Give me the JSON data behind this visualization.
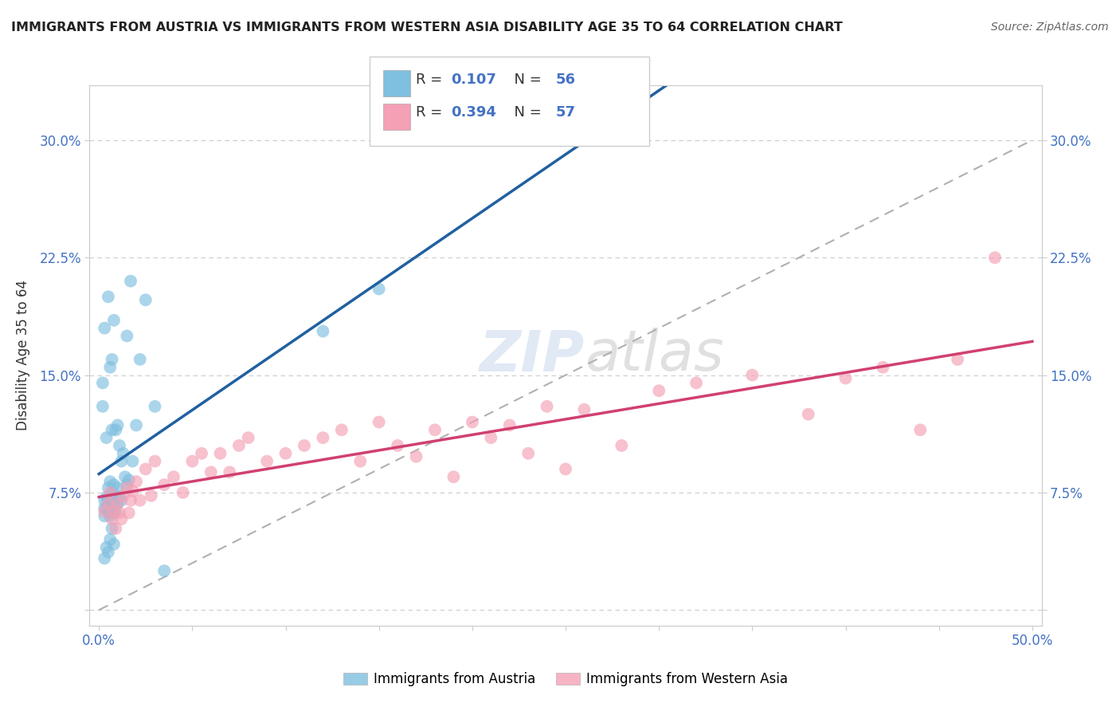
{
  "title": "IMMIGRANTS FROM AUSTRIA VS IMMIGRANTS FROM WESTERN ASIA DISABILITY AGE 35 TO 64 CORRELATION CHART",
  "source": "Source: ZipAtlas.com",
  "ylabel": "Disability Age 35 to 64",
  "xlim": [
    -0.005,
    0.505
  ],
  "ylim": [
    -0.01,
    0.335
  ],
  "ytick_positions": [
    0.0,
    0.075,
    0.15,
    0.225,
    0.3
  ],
  "ytick_labels": [
    "",
    "7.5%",
    "15.0%",
    "22.5%",
    "30.0%"
  ],
  "xtick_vals": [
    0.0,
    0.05,
    0.1,
    0.15,
    0.2,
    0.25,
    0.3,
    0.35,
    0.4,
    0.45,
    0.5
  ],
  "xtick_labels": [
    "0.0%",
    "",
    "",
    "",
    "",
    "",
    "",
    "",
    "",
    "",
    "50.0%"
  ],
  "color_blue": "#7fbfdf",
  "color_pink": "#f4a0b5",
  "color_blue_line": "#2060a0",
  "color_pink_line": "#d04070",
  "color_dashed": "#b0b0b0",
  "background_color": "#ffffff",
  "grid_color": "#cccccc",
  "legend_text_color": "#4472c4",
  "austria_x": [
    0.002,
    0.002,
    0.003,
    0.003,
    0.003,
    0.003,
    0.004,
    0.004,
    0.004,
    0.005,
    0.005,
    0.005,
    0.005,
    0.006,
    0.006,
    0.006,
    0.006,
    0.007,
    0.007,
    0.007,
    0.007,
    0.007,
    0.008,
    0.008,
    0.008,
    0.008,
    0.009,
    0.009,
    0.009,
    0.01,
    0.01,
    0.01,
    0.011,
    0.011,
    0.012,
    0.012,
    0.013,
    0.014,
    0.015,
    0.015,
    0.016,
    0.017,
    0.018,
    0.02,
    0.022,
    0.025,
    0.03,
    0.035,
    0.003,
    0.004,
    0.005,
    0.006,
    0.007,
    0.008,
    0.12,
    0.15
  ],
  "austria_y": [
    0.13,
    0.145,
    0.06,
    0.065,
    0.07,
    0.18,
    0.065,
    0.072,
    0.11,
    0.063,
    0.07,
    0.078,
    0.2,
    0.06,
    0.072,
    0.082,
    0.155,
    0.062,
    0.068,
    0.075,
    0.115,
    0.16,
    0.065,
    0.072,
    0.08,
    0.185,
    0.063,
    0.072,
    0.115,
    0.068,
    0.078,
    0.118,
    0.072,
    0.105,
    0.07,
    0.095,
    0.1,
    0.085,
    0.08,
    0.175,
    0.083,
    0.21,
    0.095,
    0.118,
    0.16,
    0.198,
    0.13,
    0.025,
    0.033,
    0.04,
    0.037,
    0.045,
    0.052,
    0.042,
    0.178,
    0.205
  ],
  "western_asia_x": [
    0.003,
    0.005,
    0.006,
    0.007,
    0.008,
    0.009,
    0.01,
    0.011,
    0.012,
    0.013,
    0.015,
    0.016,
    0.017,
    0.018,
    0.02,
    0.022,
    0.025,
    0.028,
    0.03,
    0.035,
    0.04,
    0.045,
    0.05,
    0.055,
    0.06,
    0.065,
    0.07,
    0.075,
    0.08,
    0.09,
    0.1,
    0.11,
    0.12,
    0.13,
    0.14,
    0.15,
    0.16,
    0.17,
    0.18,
    0.19,
    0.2,
    0.21,
    0.22,
    0.23,
    0.24,
    0.25,
    0.26,
    0.28,
    0.3,
    0.32,
    0.35,
    0.38,
    0.4,
    0.42,
    0.44,
    0.46,
    0.48
  ],
  "western_asia_y": [
    0.063,
    0.068,
    0.075,
    0.058,
    0.063,
    0.052,
    0.068,
    0.062,
    0.058,
    0.073,
    0.078,
    0.062,
    0.07,
    0.076,
    0.082,
    0.07,
    0.09,
    0.073,
    0.095,
    0.08,
    0.085,
    0.075,
    0.095,
    0.1,
    0.088,
    0.1,
    0.088,
    0.105,
    0.11,
    0.095,
    0.1,
    0.105,
    0.11,
    0.115,
    0.095,
    0.12,
    0.105,
    0.098,
    0.115,
    0.085,
    0.12,
    0.11,
    0.118,
    0.1,
    0.13,
    0.09,
    0.128,
    0.105,
    0.14,
    0.145,
    0.15,
    0.125,
    0.148,
    0.155,
    0.115,
    0.16,
    0.225
  ]
}
